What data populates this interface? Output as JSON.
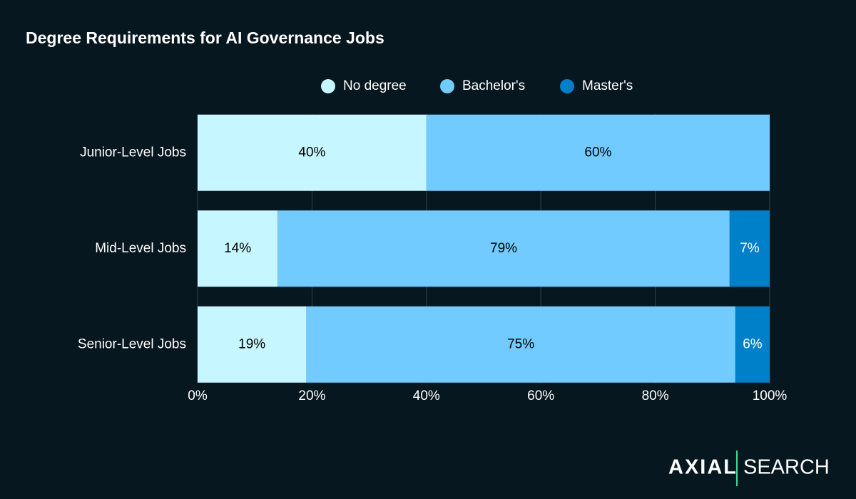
{
  "chart_data": {
    "type": "stacked_bar_horizontal",
    "title": "Degree Requirements for AI Governance Jobs",
    "categories": [
      "Junior-Level Jobs",
      "Mid-Level Jobs",
      "Senior-Level Jobs"
    ],
    "series": [
      {
        "name": "No degree",
        "color": "#c6f6ff",
        "values": [
          40,
          14,
          19
        ],
        "value_labels": [
          "40%",
          "14%",
          "19%"
        ]
      },
      {
        "name": "Bachelor's",
        "color": "#72cbff",
        "values": [
          60,
          79,
          75
        ],
        "value_labels": [
          "60%",
          "79%",
          "75%"
        ]
      },
      {
        "name": "Master's",
        "color": "#0080c8",
        "values": [
          null,
          7,
          6
        ],
        "value_labels": [
          null,
          "7%",
          "6%"
        ]
      }
    ],
    "xlim": [
      0,
      100
    ],
    "xticks": [
      {
        "value": 0,
        "label": "0%"
      },
      {
        "value": 20,
        "label": "20%"
      },
      {
        "value": 40,
        "label": "40%"
      },
      {
        "value": 60,
        "label": "60%"
      },
      {
        "value": 80,
        "label": "80%"
      },
      {
        "value": 100,
        "label": "100%"
      }
    ],
    "grid": true,
    "legend": "top"
  },
  "logo": {
    "left": "AXIAL",
    "right": "SEARCH"
  }
}
